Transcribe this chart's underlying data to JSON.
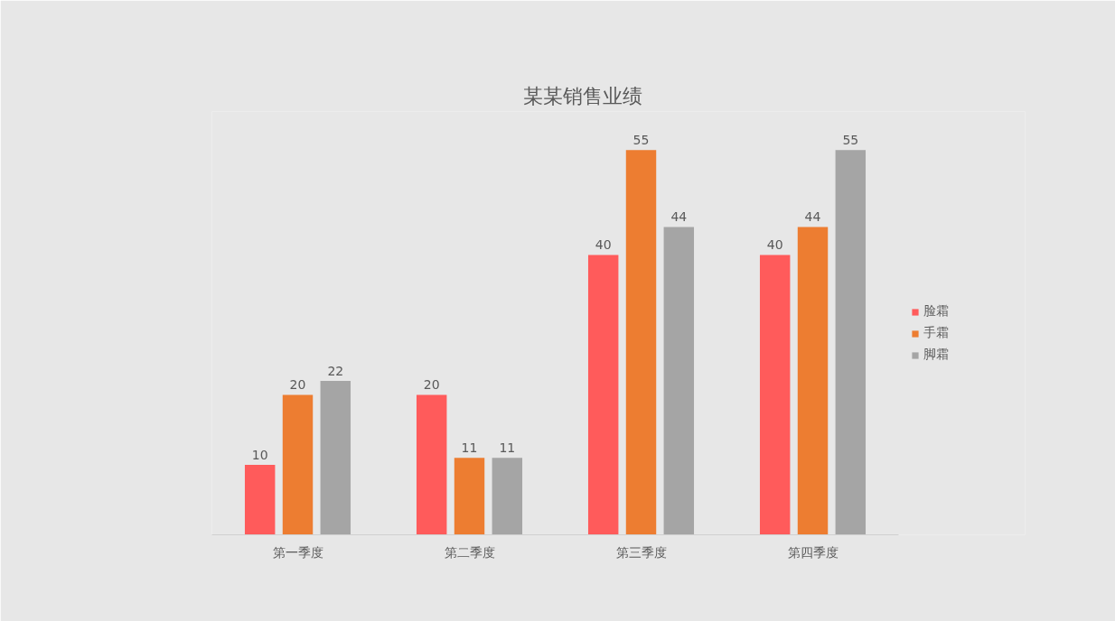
{
  "chart_data": {
    "type": "bar",
    "title": "某某销售业绩",
    "categories": [
      "第一季度",
      "第二季度",
      "第三季度",
      "第四季度"
    ],
    "series": [
      {
        "name": "脸霜",
        "color": "#ff5b5b",
        "values": [
          10,
          20,
          40,
          40
        ]
      },
      {
        "name": "手霜",
        "color": "#ed7d31",
        "values": [
          20,
          11,
          55,
          44
        ]
      },
      {
        "name": "脚霜",
        "color": "#a5a5a5",
        "values": [
          22,
          11,
          44,
          55
        ]
      }
    ],
    "data_labels": true,
    "legend": "right"
  }
}
